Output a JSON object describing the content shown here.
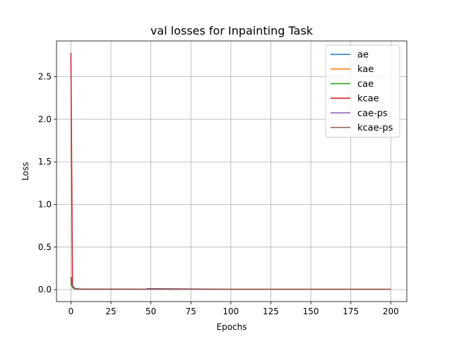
{
  "chart_data": {
    "type": "line",
    "title": "val losses for Inpainting Task",
    "xlabel": "Epochs",
    "ylabel": "Loss",
    "xlim": [
      -9,
      210
    ],
    "ylim": [
      -0.14,
      2.92
    ],
    "xticks": [
      0,
      25,
      50,
      75,
      100,
      125,
      150,
      175,
      200
    ],
    "yticks": [
      0.0,
      0.5,
      1.0,
      1.5,
      2.0,
      2.5
    ],
    "ytick_labels": [
      "0.0",
      "0.5",
      "1.0",
      "1.5",
      "2.0",
      "2.5"
    ],
    "grid": true,
    "legend_position": "top-right",
    "series": [
      {
        "name": "ae",
        "color": "#1f77b4",
        "x": [
          0,
          1,
          2,
          3,
          5,
          10,
          20,
          50,
          100,
          150,
          200
        ],
        "y": [
          0.1,
          0.03,
          0.015,
          0.01,
          0.007,
          0.005,
          0.004,
          0.003,
          0.003,
          0.003,
          0.003
        ]
      },
      {
        "name": "kae",
        "color": "#ff7f0e",
        "x": [
          0,
          1,
          2,
          3,
          5,
          10,
          20,
          50,
          100,
          150,
          200
        ],
        "y": [
          0.12,
          0.04,
          0.02,
          0.012,
          0.008,
          0.006,
          0.005,
          0.004,
          0.004,
          0.004,
          0.004
        ]
      },
      {
        "name": "cae",
        "color": "#2ca02c",
        "x": [
          0,
          1,
          2,
          3,
          5,
          10,
          20,
          50,
          100,
          150,
          200
        ],
        "y": [
          0.08,
          0.025,
          0.012,
          0.008,
          0.006,
          0.005,
          0.004,
          0.003,
          0.003,
          0.003,
          0.003
        ]
      },
      {
        "name": "kcae",
        "color": "#d62728",
        "x": [
          0,
          1,
          2,
          3,
          5,
          10,
          20,
          50,
          100,
          150,
          200
        ],
        "y": [
          2.78,
          0.05,
          0.02,
          0.012,
          0.008,
          0.006,
          0.005,
          0.004,
          0.004,
          0.004,
          0.004
        ]
      },
      {
        "name": "cae-ps",
        "color": "#9467bd",
        "x": [
          0,
          1,
          2,
          3,
          5,
          10,
          20,
          50,
          100,
          150,
          200
        ],
        "y": [
          0.14,
          0.04,
          0.018,
          0.01,
          0.007,
          0.005,
          0.004,
          0.003,
          0.003,
          0.003,
          0.003
        ]
      },
      {
        "name": "kcae-ps",
        "color": "#8c564b",
        "x": [
          0,
          1,
          2,
          3,
          5,
          10,
          20,
          47,
          48,
          100,
          150,
          200
        ],
        "y": [
          0.15,
          0.045,
          0.02,
          0.012,
          0.008,
          0.006,
          0.005,
          0.005,
          0.012,
          0.004,
          0.004,
          0.004
        ]
      }
    ]
  }
}
